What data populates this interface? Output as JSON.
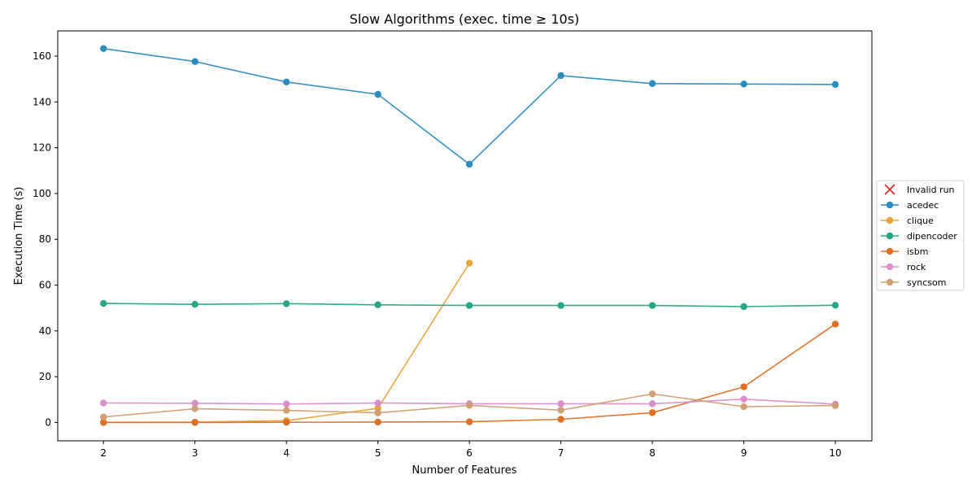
{
  "chart_data": {
    "type": "line",
    "title": "Slow Algorithms (exec. time ≥ 10s)",
    "xlabel": "Number of Features",
    "ylabel": "Execution Time (s)",
    "xlim": [
      1.5,
      10.4
    ],
    "ylim": [
      -8,
      171
    ],
    "x_ticks": [
      2,
      3,
      4,
      5,
      6,
      7,
      8,
      9,
      10
    ],
    "y_ticks": [
      0,
      20,
      40,
      60,
      80,
      100,
      120,
      140,
      160
    ],
    "grid": false,
    "legend_position": "right",
    "legend": [
      {
        "label": "Invalid run",
        "marker": "x",
        "color": "#d62728"
      },
      {
        "label": "acedec",
        "marker": "o",
        "color": "#2b8cbe"
      },
      {
        "label": "clique",
        "marker": "o",
        "color": "#e8a33a"
      },
      {
        "label": "dipencoder",
        "marker": "o",
        "color": "#26a685"
      },
      {
        "label": "isbm",
        "marker": "o",
        "color": "#de7025"
      },
      {
        "label": "rock",
        "marker": "o",
        "color": "#d98ecb"
      },
      {
        "label": "syncsom",
        "marker": "o",
        "color": "#cf9f73"
      }
    ],
    "series": [
      {
        "name": "acedec",
        "color": "#2b8cbe",
        "x": [
          2,
          3,
          4,
          5,
          6,
          7,
          8,
          9,
          10
        ],
        "values": [
          163.3,
          157.6,
          148.7,
          143.3,
          112.8,
          151.5,
          148.0,
          147.8,
          147.6
        ]
      },
      {
        "name": "clique",
        "color": "#e8a33a",
        "x": [
          2,
          3,
          4,
          5,
          6
        ],
        "values": [
          0.1,
          0.2,
          0.8,
          6.2,
          69.6
        ]
      },
      {
        "name": "dipencoder",
        "color": "#26a685",
        "x": [
          2,
          3,
          4,
          5,
          6,
          7,
          8,
          9,
          10
        ],
        "values": [
          52.0,
          51.6,
          51.9,
          51.4,
          51.1,
          51.1,
          51.1,
          50.6,
          51.2
        ]
      },
      {
        "name": "isbm",
        "color": "#de7025",
        "x": [
          2,
          3,
          4,
          5,
          6,
          7,
          8,
          9,
          10
        ],
        "values": [
          0.0,
          0.0,
          0.1,
          0.2,
          0.3,
          1.4,
          4.3,
          15.6,
          43.0
        ]
      },
      {
        "name": "rock",
        "color": "#d98ecb",
        "x": [
          2,
          3,
          4,
          5,
          6,
          7,
          8,
          9,
          10
        ],
        "values": [
          8.5,
          8.4,
          8.1,
          8.5,
          8.2,
          8.2,
          8.2,
          10.2,
          8.0
        ]
      },
      {
        "name": "syncsom",
        "color": "#cf9f73",
        "x": [
          2,
          3,
          4,
          5,
          6,
          7,
          8,
          9,
          10
        ],
        "values": [
          2.4,
          6.0,
          5.3,
          4.2,
          7.5,
          5.4,
          12.5,
          6.9,
          7.4
        ]
      }
    ]
  }
}
